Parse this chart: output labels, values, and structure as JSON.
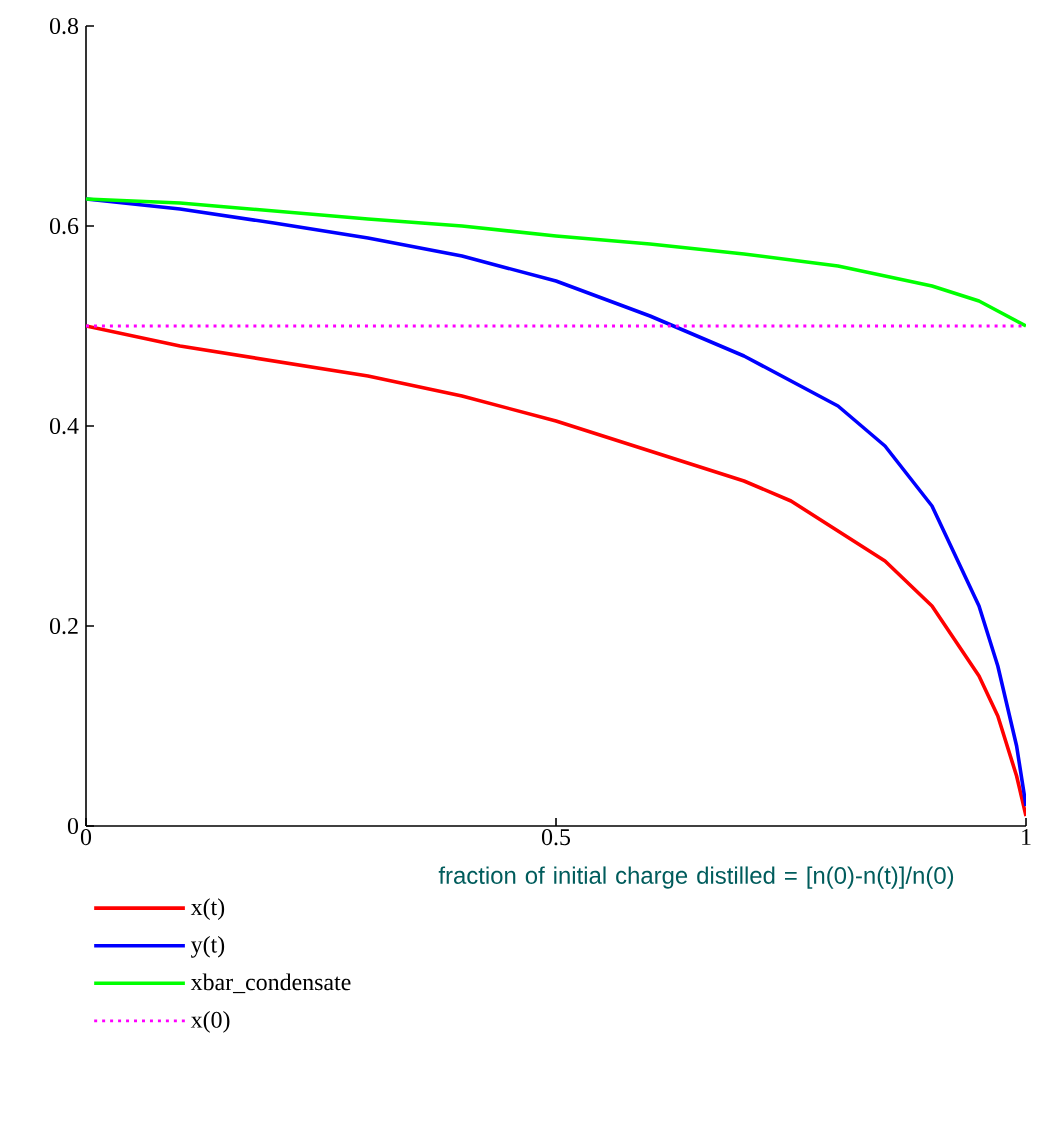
{
  "chart_data": {
    "type": "line",
    "xlabel": "fraction of initial charge distilled = [n(0)-n(t)]/n(0)",
    "xlim": [
      0,
      1
    ],
    "ylim": [
      0,
      0.8
    ],
    "xticks": [
      0,
      0.5,
      1
    ],
    "yticks": [
      0,
      0.2,
      0.4,
      0.6,
      0.8
    ],
    "grid": false,
    "legend": "bottom left",
    "marker": "none",
    "series": [
      {
        "name": "x(t)",
        "color": "#ff0000",
        "line_style": "solid",
        "x": [
          0,
          0.1,
          0.2,
          0.3,
          0.4,
          0.5,
          0.6,
          0.7,
          0.75,
          0.8,
          0.85,
          0.9,
          0.95,
          0.97,
          0.99,
          1
        ],
        "values": [
          0.5,
          0.48,
          0.465,
          0.45,
          0.43,
          0.405,
          0.375,
          0.345,
          0.325,
          0.295,
          0.265,
          0.22,
          0.15,
          0.11,
          0.05,
          0.01
        ]
      },
      {
        "name": "y(t)",
        "color": "#0000ff",
        "line_style": "solid",
        "x": [
          0,
          0.1,
          0.2,
          0.3,
          0.4,
          0.5,
          0.6,
          0.65,
          0.7,
          0.8,
          0.85,
          0.9,
          0.95,
          0.97,
          0.99,
          1
        ],
        "values": [
          0.627,
          0.617,
          0.603,
          0.588,
          0.57,
          0.545,
          0.51,
          0.49,
          0.47,
          0.42,
          0.38,
          0.32,
          0.22,
          0.16,
          0.08,
          0.02
        ]
      },
      {
        "name": "xbar_condensate",
        "color": "#00ff00",
        "line_style": "solid",
        "x": [
          0,
          0.1,
          0.2,
          0.3,
          0.4,
          0.5,
          0.6,
          0.7,
          0.8,
          0.9,
          0.95,
          1
        ],
        "values": [
          0.627,
          0.623,
          0.615,
          0.607,
          0.6,
          0.59,
          0.582,
          0.572,
          0.56,
          0.54,
          0.525,
          0.5
        ]
      },
      {
        "name": "x(0)",
        "color": "#ff00ff",
        "line_style": "dotted",
        "x": [
          0,
          1
        ],
        "values": [
          0.5,
          0.5
        ]
      }
    ]
  }
}
